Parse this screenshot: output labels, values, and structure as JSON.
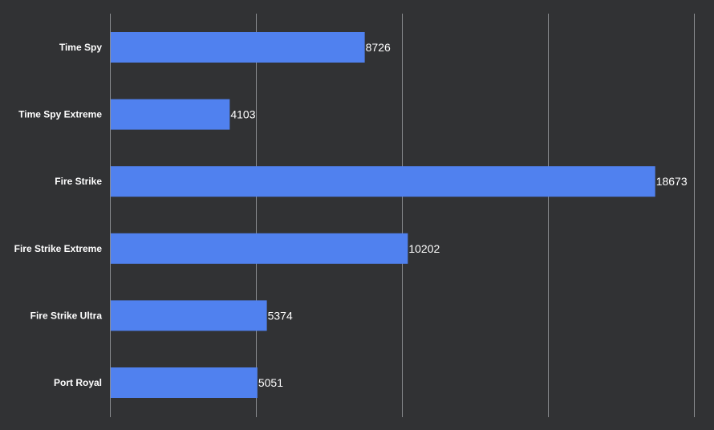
{
  "chart_data": {
    "type": "bar",
    "orientation": "horizontal",
    "title": "",
    "xlabel": "",
    "ylabel": "",
    "categories": [
      "Time Spy",
      "Time Spy Extreme",
      "Fire Strike",
      "Fire Strike Extreme",
      "Fire Strike Ultra",
      "Port Royal"
    ],
    "values": [
      8726,
      4103,
      18673,
      10202,
      5374,
      5051
    ],
    "xlim": [
      0,
      20000
    ],
    "grid": true,
    "legend": "none",
    "colors": {
      "background": "#313234",
      "bar": "#5081EF",
      "grid": "#8A8C90",
      "text": "#FFFFFF"
    }
  }
}
